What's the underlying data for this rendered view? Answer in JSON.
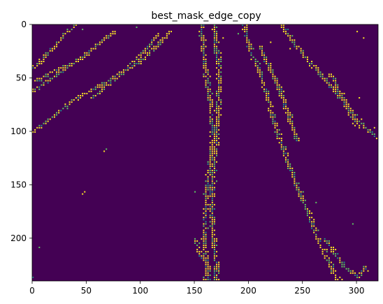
{
  "chart_data": {
    "type": "heatmap",
    "title": "best_mask_edge_copy",
    "xlabel": "",
    "ylabel": "",
    "image_width": 320,
    "image_height": 240,
    "xlim": [
      0,
      320
    ],
    "ylim": [
      240,
      0
    ],
    "x_ticks": [
      0,
      50,
      100,
      150,
      200,
      250,
      300
    ],
    "y_ticks": [
      0,
      50,
      100,
      150,
      200
    ],
    "grid": false,
    "legend": "none",
    "colormap": "viridis",
    "background_value": 0,
    "edge_value": 1,
    "colors": {
      "background": "#440154",
      "edge_a": "#fde725",
      "edge_b": "#5ec962",
      "edge_c": "#21918c"
    },
    "edge_polylines": [
      {
        "points": [
          [
            0,
            40
          ],
          [
            15,
            25
          ],
          [
            30,
            8
          ],
          [
            40,
            0
          ]
        ]
      },
      {
        "points": [
          [
            0,
            62
          ],
          [
            20,
            48
          ],
          [
            45,
            30
          ],
          [
            60,
            18
          ],
          [
            75,
            6
          ]
        ]
      },
      {
        "points": [
          [
            2,
            52
          ],
          [
            22,
            42
          ],
          [
            38,
            35
          ]
        ]
      },
      {
        "points": [
          [
            0,
            100
          ],
          [
            15,
            88
          ],
          [
            35,
            72
          ],
          [
            55,
            60
          ],
          [
            70,
            52
          ],
          [
            85,
            42
          ],
          [
            98,
            35
          ],
          [
            112,
            22
          ],
          [
            126,
            6
          ]
        ]
      },
      {
        "points": [
          [
            55,
            68
          ],
          [
            70,
            55
          ],
          [
            82,
            45
          ],
          [
            95,
            32
          ],
          [
            108,
            18
          ],
          [
            116,
            8
          ]
        ]
      },
      {
        "points": [
          [
            155,
            0
          ],
          [
            157,
            20
          ],
          [
            160,
            45
          ],
          [
            164,
            75
          ],
          [
            166,
            100
          ],
          [
            165,
            120
          ],
          [
            162,
            140
          ],
          [
            160,
            160
          ],
          [
            159,
            180
          ],
          [
            158,
            200
          ],
          [
            160,
            220
          ],
          [
            163,
            240
          ]
        ]
      },
      {
        "points": [
          [
            168,
            0
          ],
          [
            170,
            25
          ],
          [
            172,
            50
          ],
          [
            171,
            75
          ],
          [
            170,
            100
          ],
          [
            168,
            125
          ],
          [
            166,
            150
          ],
          [
            165,
            170
          ],
          [
            166,
            190
          ],
          [
            168,
            210
          ],
          [
            170,
            225
          ],
          [
            168,
            240
          ]
        ]
      },
      {
        "points": [
          [
            150,
            200
          ],
          [
            155,
            215
          ],
          [
            162,
            225
          ],
          [
            158,
            240
          ]
        ]
      },
      {
        "points": [
          [
            195,
            0
          ],
          [
            200,
            20
          ],
          [
            208,
            40
          ],
          [
            215,
            60
          ],
          [
            220,
            80
          ],
          [
            226,
            100
          ],
          [
            233,
            120
          ],
          [
            240,
            140
          ],
          [
            248,
            160
          ],
          [
            256,
            180
          ],
          [
            264,
            200
          ],
          [
            273,
            220
          ],
          [
            282,
            240
          ]
        ]
      },
      {
        "points": [
          [
            210,
            20
          ],
          [
            218,
            38
          ],
          [
            226,
            55
          ],
          [
            232,
            72
          ],
          [
            238,
            90
          ],
          [
            244,
            108
          ]
        ]
      },
      {
        "points": [
          [
            230,
            0
          ],
          [
            240,
            15
          ],
          [
            252,
            30
          ],
          [
            265,
            45
          ],
          [
            278,
            60
          ],
          [
            290,
            75
          ],
          [
            305,
            92
          ],
          [
            318,
            105
          ]
        ]
      },
      {
        "points": [
          [
            275,
            45
          ],
          [
            285,
            65
          ],
          [
            292,
            80
          ],
          [
            300,
            95
          ]
        ]
      },
      {
        "points": [
          [
            270,
            200
          ],
          [
            280,
            215
          ],
          [
            290,
            228
          ],
          [
            300,
            235
          ],
          [
            308,
            225
          ]
        ]
      }
    ],
    "edge_points": [
      [
        8,
        35
      ],
      [
        22,
        15
      ],
      [
        46,
        3
      ],
      [
        52,
        28
      ],
      [
        96,
        2
      ],
      [
        66,
        118
      ],
      [
        68,
        116
      ],
      [
        48,
        156
      ],
      [
        46,
        157
      ],
      [
        5,
        207
      ],
      [
        150,
        156
      ],
      [
        175,
        12
      ],
      [
        190,
        8
      ],
      [
        220,
        15
      ],
      [
        238,
        22
      ],
      [
        300,
        5
      ],
      [
        305,
        12
      ],
      [
        302,
        68
      ],
      [
        315,
        95
      ],
      [
        0,
        235
      ],
      [
        285,
        238
      ],
      [
        296,
        185
      ],
      [
        310,
        230
      ],
      [
        262,
        165
      ]
    ]
  }
}
